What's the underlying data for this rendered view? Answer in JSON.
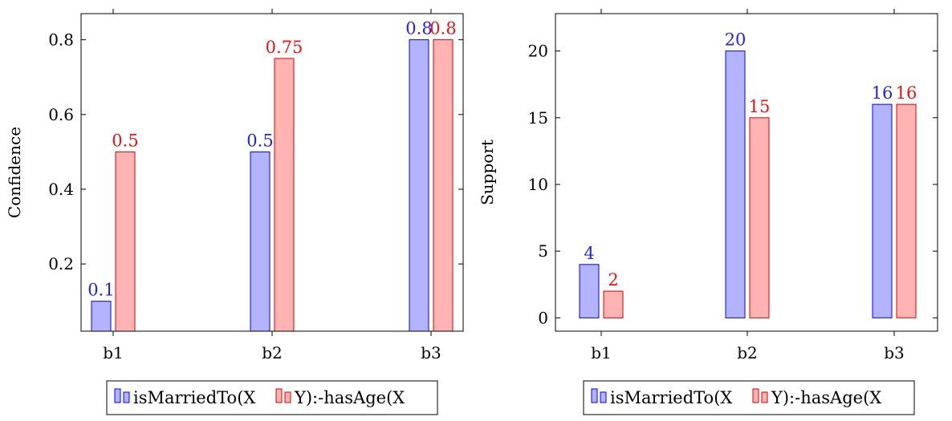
{
  "colors": {
    "series1_fill": "#b3b3ff",
    "series1_stroke": "#0000ff",
    "series1_label": "#2222ee",
    "series2_fill": "#ffb3b3",
    "series2_stroke": "#dd0000",
    "series2_label": "#ee1111"
  },
  "chart_data": [
    {
      "type": "bar",
      "title": "",
      "xlabel": "",
      "ylabel": "Confidence",
      "categories": [
        "b1",
        "b2",
        "b3"
      ],
      "ylim": [
        0.02,
        0.87
      ],
      "yticks": [
        0.2,
        0.4,
        0.6,
        0.8
      ],
      "ytick_labels": [
        "0.2",
        "0.4",
        "0.6",
        "0.8"
      ],
      "series": [
        {
          "values": [
            0.1,
            0.5,
            0.8
          ],
          "labels": [
            "0.1",
            "0.5",
            "0.8"
          ]
        },
        {
          "values": [
            0.5,
            0.75,
            0.8
          ],
          "labels": [
            "0.5",
            "0.75",
            "0.8"
          ]
        }
      ],
      "legend": {
        "position": "bottom",
        "entries": [
          "isMarriedTo(X",
          "Y):-hasAge(X"
        ]
      },
      "grid": false
    },
    {
      "type": "bar",
      "title": "",
      "xlabel": "",
      "ylabel": "Support",
      "categories": [
        "b1",
        "b2",
        "b3"
      ],
      "ylim": [
        -1,
        22.8
      ],
      "yticks": [
        0,
        5,
        10,
        15,
        20
      ],
      "ytick_labels": [
        "0",
        "5",
        "10",
        "15",
        "20"
      ],
      "series": [
        {
          "values": [
            4,
            20,
            16
          ],
          "labels": [
            "4",
            "20",
            "16"
          ]
        },
        {
          "values": [
            2,
            15,
            16
          ],
          "labels": [
            "2",
            "15",
            "16"
          ]
        }
      ],
      "legend": {
        "position": "bottom",
        "entries": [
          "isMarriedTo(X",
          "Y):-hasAge(X"
        ]
      },
      "grid": false
    }
  ]
}
